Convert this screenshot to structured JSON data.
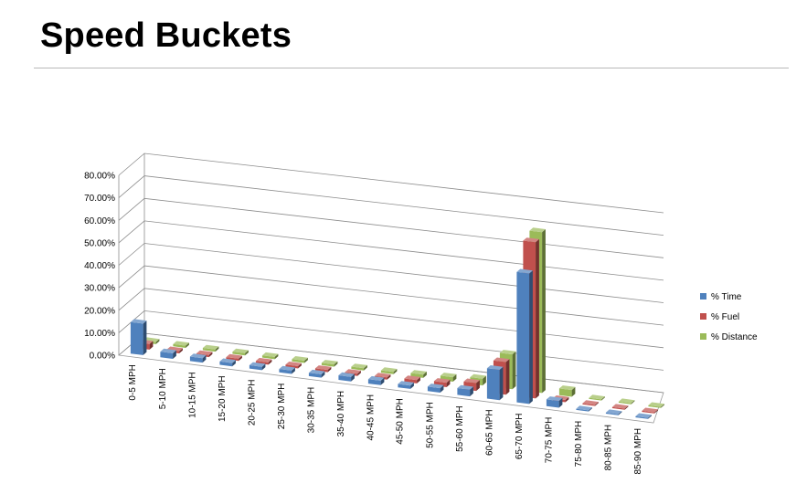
{
  "slide": {
    "title": "Speed Buckets"
  },
  "chart_data": {
    "type": "bar",
    "subtype": "3d-clustered-column",
    "title": "",
    "xlabel": "",
    "ylabel": "",
    "ylim": [
      0,
      80
    ],
    "y_ticks": [
      "0.00%",
      "10.00%",
      "20.00%",
      "30.00%",
      "40.00%",
      "50.00%",
      "60.00%",
      "70.00%",
      "80.00%"
    ],
    "grid": true,
    "legend_position": "right",
    "categories": [
      "0-5 MPH",
      "5-10 MPH",
      "10-15 MPH",
      "15-20 MPH",
      "20-25 MPH",
      "25-30 MPH",
      "30-35 MPH",
      "35-40 MPH",
      "40-45 MPH",
      "45-50 MPH",
      "50-55 MPH",
      "55-60 MPH",
      "60-65 MPH",
      "65-70 MPH",
      "70-75 MPH",
      "75-80 MPH",
      "80-85 MPH",
      "85-90 MPH"
    ],
    "series": [
      {
        "name": "% Time",
        "color": "#4f81bd",
        "values": [
          14.0,
          2.5,
          2.0,
          1.5,
          1.5,
          1.5,
          1.5,
          2.0,
          2.0,
          1.5,
          2.0,
          3.0,
          13.5,
          58.0,
          3.0,
          0.5,
          0.5,
          0.5
        ]
      },
      {
        "name": "% Fuel",
        "color": "#c0504d",
        "values": [
          2.5,
          1.0,
          1.0,
          1.0,
          1.0,
          1.0,
          1.0,
          1.0,
          1.0,
          1.5,
          2.0,
          3.5,
          14.5,
          69.5,
          1.0,
          0.5,
          0.5,
          0.5
        ]
      },
      {
        "name": "% Distance",
        "color": "#9bbb59",
        "values": [
          1.0,
          1.0,
          1.0,
          1.0,
          1.0,
          1.0,
          1.0,
          1.0,
          1.0,
          1.5,
          2.0,
          3.0,
          15.5,
          71.5,
          3.0,
          0.5,
          0.5,
          0.5
        ]
      }
    ]
  }
}
